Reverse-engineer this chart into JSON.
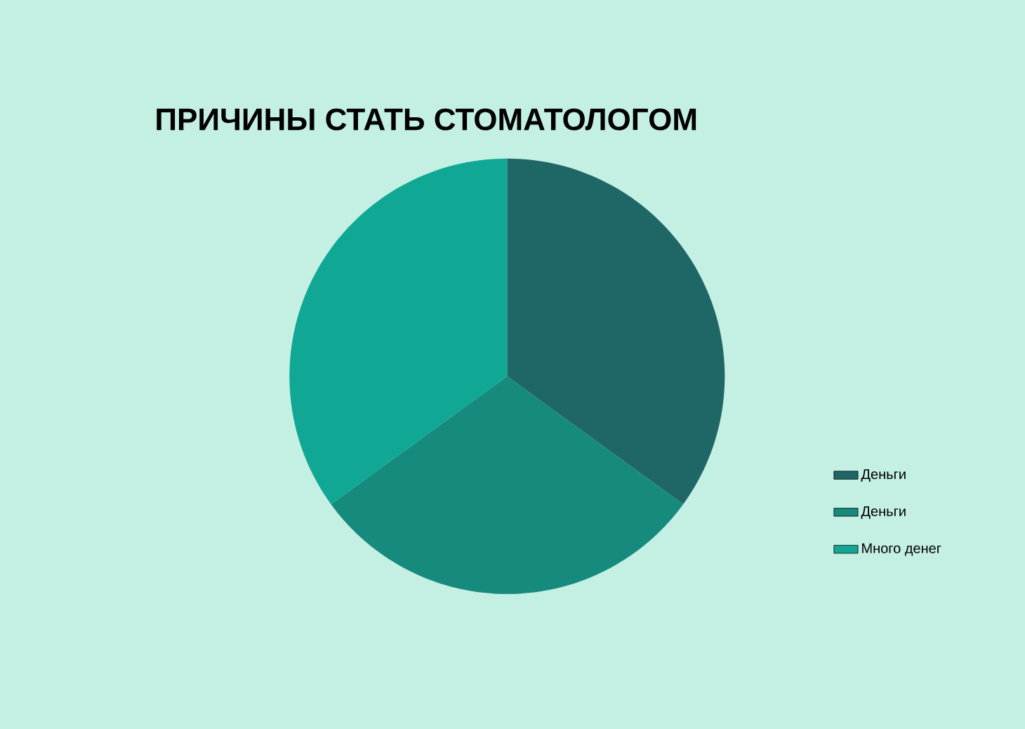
{
  "chart_data": {
    "type": "pie",
    "title": "ПРИЧИНЫ СТАТЬ СТОМАТОЛОГОМ",
    "categories": [
      "Деньги",
      "Деньги",
      "Много денег"
    ],
    "values": [
      35,
      30,
      35
    ],
    "colors": [
      "#1f6766",
      "#178a7e",
      "#10a895"
    ],
    "legend": "right"
  }
}
